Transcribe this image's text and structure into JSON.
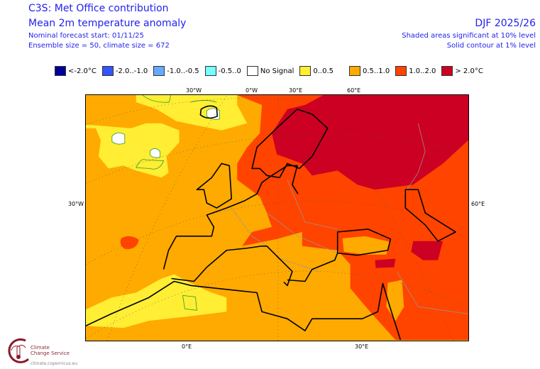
{
  "header": {
    "title": "C3S: Met Office contribution",
    "subtitle": "Mean 2m temperature anomaly",
    "forecast_start": "Nominal forecast start: 01/11/25",
    "ensemble": "Ensemble size = 50, climate size = 672",
    "period": "DJF 2025/26",
    "significance_shaded": "Shaded areas significant at 10% level",
    "significance_contour": "Solid contour at 1% level"
  },
  "legend": [
    {
      "label": "<-2.0°C",
      "color": "#000099"
    },
    {
      "label": "-2.0..-1.0",
      "color": "#3355ff"
    },
    {
      "label": "-1.0..-0.5",
      "color": "#66aaff"
    },
    {
      "label": "-0.5..0",
      "color": "#77ffff"
    },
    {
      "label": "No Signal",
      "color": "#ffffff"
    },
    {
      "label": "0..0.5",
      "color": "#ffee33"
    },
    {
      "label": "0.5..1.0",
      "color": "#ffaa00"
    },
    {
      "label": "1.0..2.0",
      "color": "#ff4400"
    },
    {
      "label": "> 2.0°C",
      "color": "#cc0022"
    }
  ],
  "axis_labels": {
    "top": [
      "30°W",
      "0°W",
      "30°E",
      "60°E"
    ],
    "left": "30°W",
    "right": "60°E",
    "bottom": [
      "0°E",
      "30°E"
    ]
  },
  "logo": {
    "line1": "Climate",
    "line2": "Change Service",
    "url": "climate.copernicus.eu"
  }
}
